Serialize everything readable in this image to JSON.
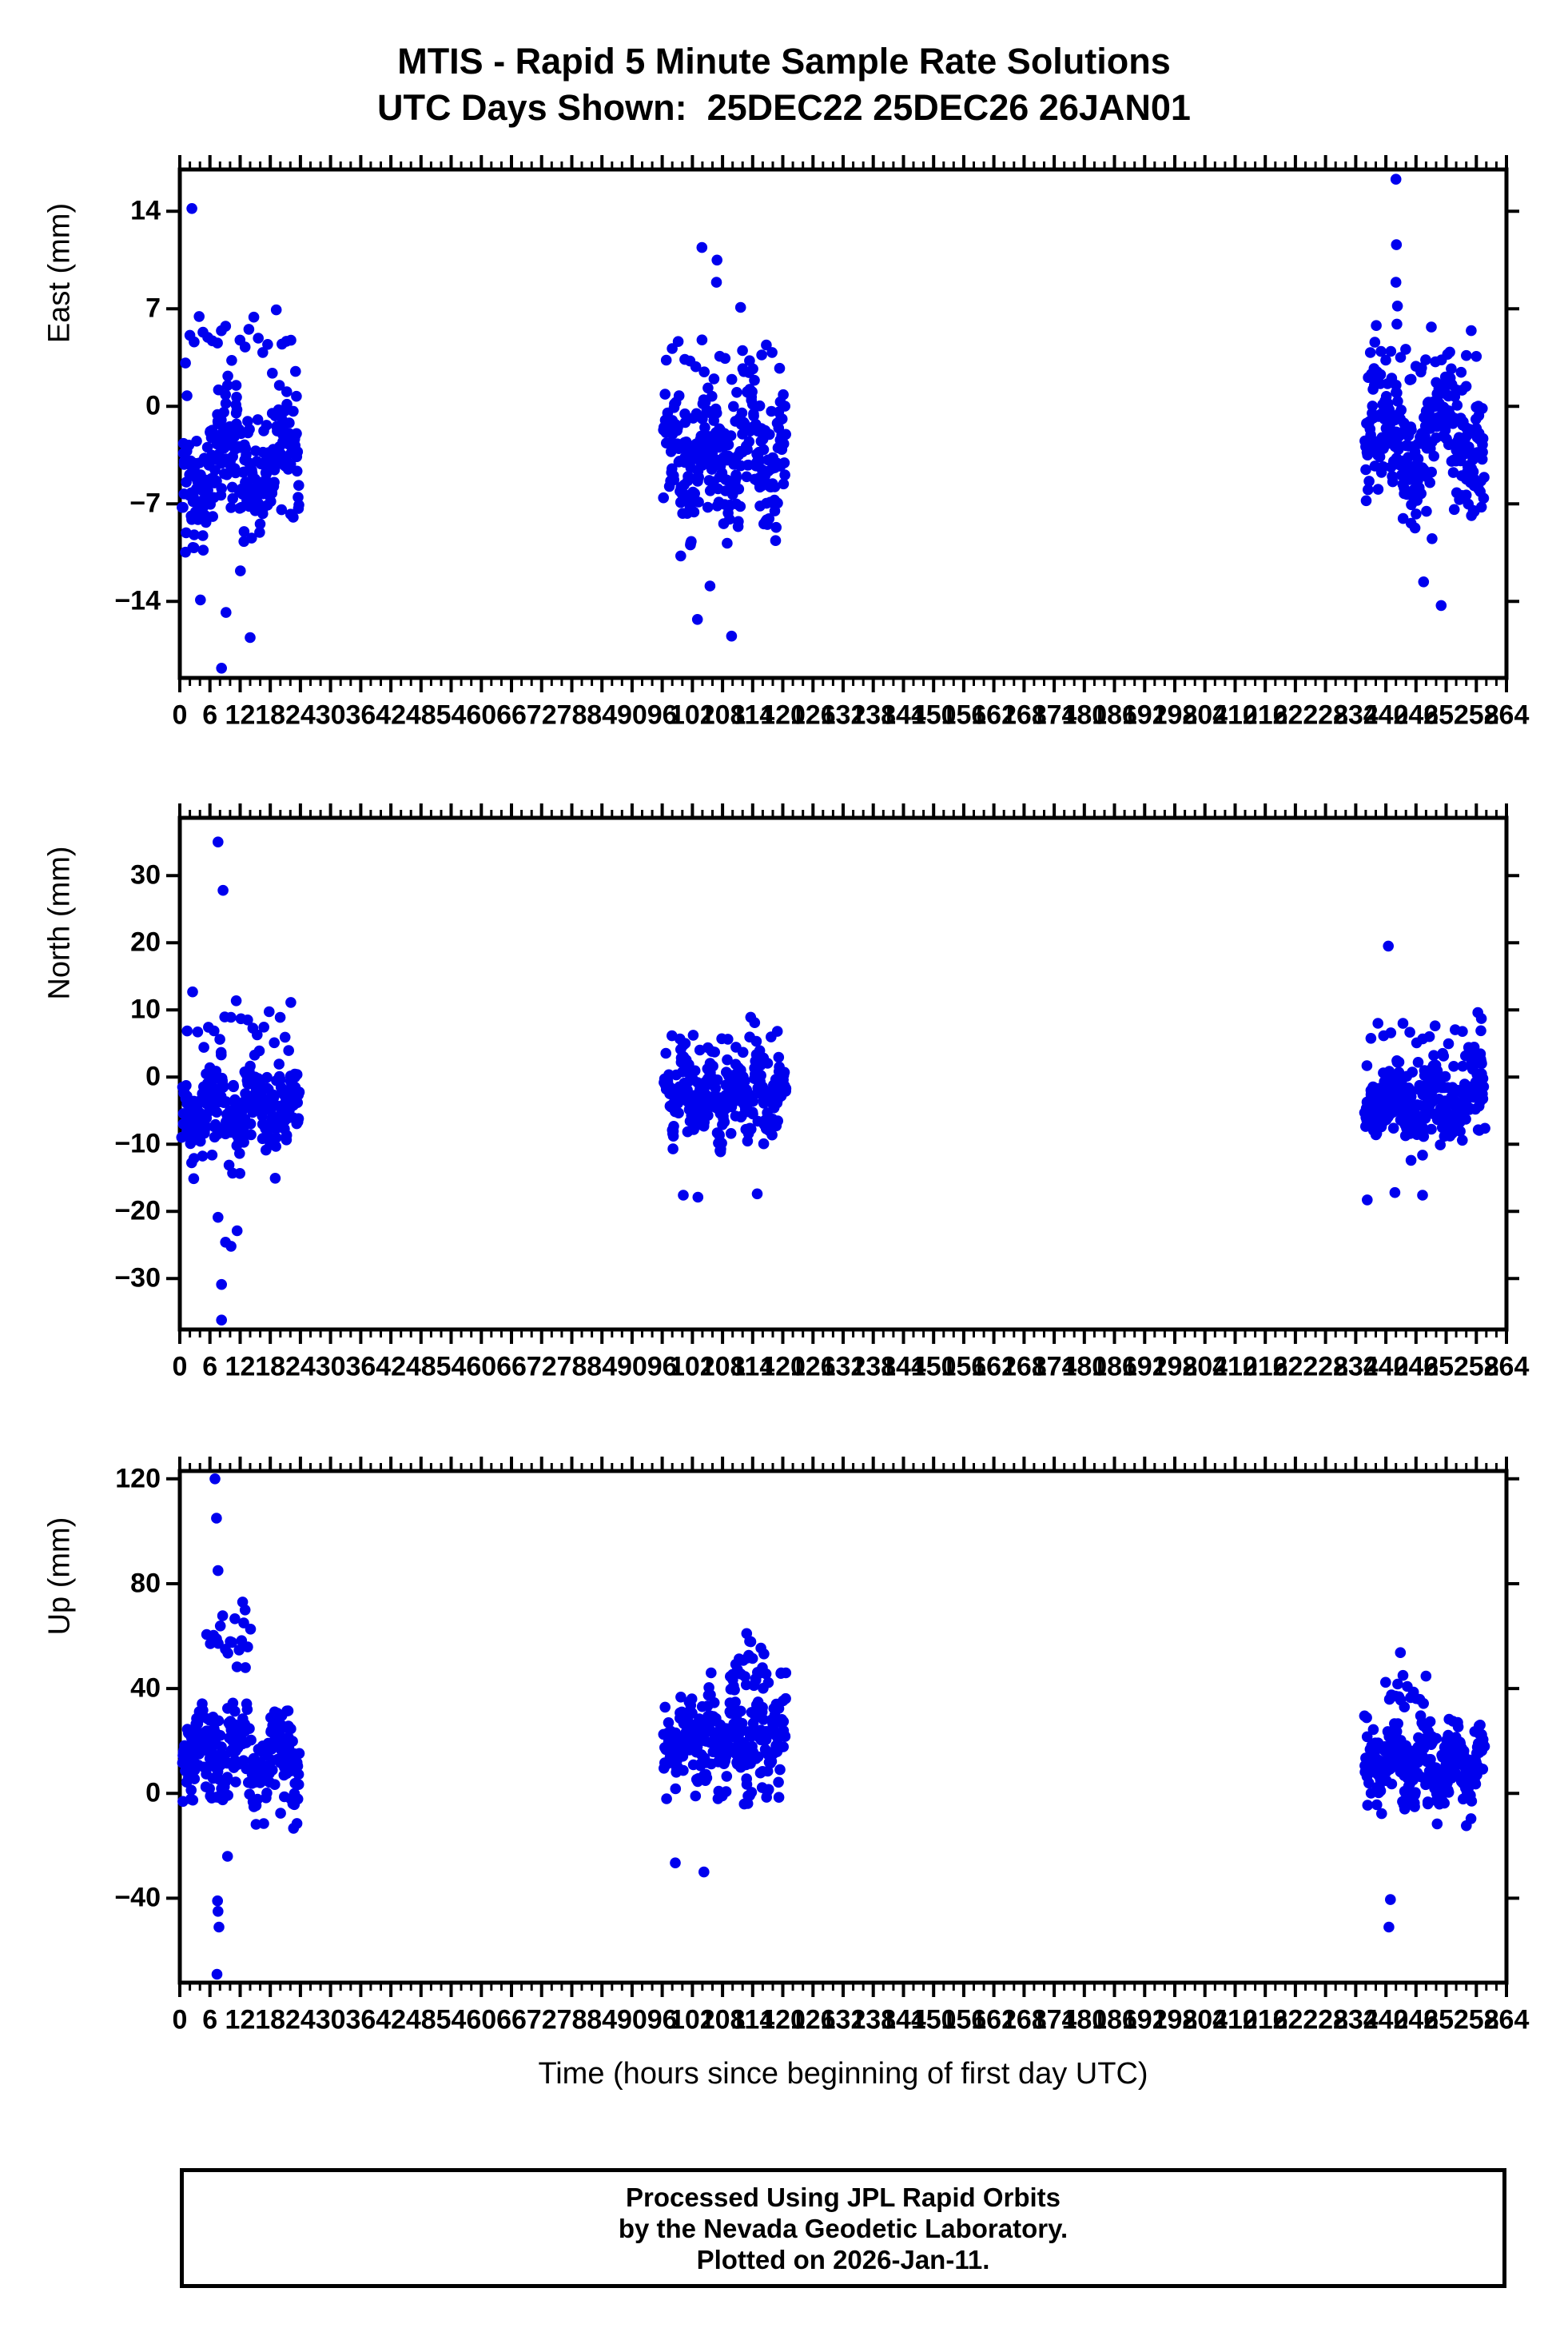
{
  "title": {
    "line1": "MTIS - Rapid 5 Minute Sample Rate Solutions",
    "line2": "UTC Days Shown:  25DEC22 25DEC26 26JAN01"
  },
  "xaxis": {
    "label": "Time (hours since beginning of first day UTC)",
    "min": 0,
    "max": 264,
    "major_step": 6,
    "minor_step": 2
  },
  "footer": {
    "line1": "Processed Using JPL Rapid Orbits",
    "line2": "by the Nevada Geodetic Laboratory.",
    "line3": "Plotted on 2026-Jan-11."
  },
  "style": {
    "point_color": "#0000ee",
    "axis_color": "#000000",
    "point_radius": 6.8
  },
  "chart_data": [
    {
      "type": "scatter",
      "ylabel": "East (mm)",
      "ylim": [
        -19.5,
        17.0
      ],
      "yticks": [
        14,
        7,
        0,
        -7,
        -14
      ],
      "grid": false,
      "clusters": [
        {
          "x0": 0.5,
          "x1": 23.8,
          "n": 272,
          "mean": -4.2,
          "std": 3.6,
          "lo": -12.5,
          "hi": 5.0,
          "seed": 101
        },
        {
          "x0": 1.0,
          "x1": 23.0,
          "n": 25,
          "mean": 4.5,
          "std": 1.8,
          "lo": 1.5,
          "hi": 7.4,
          "seed": 102
        },
        {
          "x0": 96.3,
          "x1": 120.6,
          "n": 281,
          "mean": -3.6,
          "std": 3.4,
          "lo": -11.0,
          "hi": 4.0,
          "seed": 103
        },
        {
          "x0": 98.0,
          "x1": 118.0,
          "n": 18,
          "mean": 3.0,
          "std": 1.5,
          "lo": 1.0,
          "hi": 5.2,
          "seed": 104
        },
        {
          "x0": 235.8,
          "x1": 259.6,
          "n": 289,
          "mean": -2.4,
          "std": 3.6,
          "lo": -9.5,
          "hi": 4.6,
          "seed": 105
        },
        {
          "x0": 237.0,
          "x1": 258.0,
          "n": 22,
          "mean": 3.5,
          "std": 1.6,
          "lo": 1.0,
          "hi": 5.8,
          "seed": 106
        }
      ],
      "outliers": [
        [
          2.4,
          14.2
        ],
        [
          8.3,
          -18.8
        ],
        [
          14.0,
          -16.6
        ],
        [
          9.2,
          -14.8
        ],
        [
          4.1,
          -13.9
        ],
        [
          103.9,
          11.4
        ],
        [
          106.9,
          10.5
        ],
        [
          106.8,
          8.9
        ],
        [
          111.6,
          7.1
        ],
        [
          103.0,
          -15.3
        ],
        [
          109.8,
          -16.5
        ],
        [
          105.5,
          -12.9
        ],
        [
          242.0,
          16.3
        ],
        [
          242.1,
          11.6
        ],
        [
          242.0,
          8.9
        ],
        [
          242.3,
          7.2
        ],
        [
          242.2,
          5.9
        ],
        [
          251.0,
          -14.3
        ],
        [
          247.5,
          -12.6
        ]
      ]
    },
    {
      "type": "scatter",
      "ylabel": "North (mm)",
      "ylim": [
        -37.6,
        38.6
      ],
      "yticks": [
        30,
        20,
        10,
        0,
        -10,
        -20,
        -30
      ],
      "grid": false,
      "clusters": [
        {
          "x0": 0.5,
          "x1": 23.8,
          "n": 268,
          "mean": -4.5,
          "std": 4.6,
          "lo": -17.5,
          "hi": 6.0,
          "seed": 201
        },
        {
          "x0": 1.5,
          "x1": 22.0,
          "n": 20,
          "mean": 8.0,
          "std": 3.0,
          "lo": 4.0,
          "hi": 13.8,
          "seed": 202
        },
        {
          "x0": 96.3,
          "x1": 120.6,
          "n": 277,
          "mean": -3.2,
          "std": 4.2,
          "lo": -14.0,
          "hi": 5.0,
          "seed": 203
        },
        {
          "x0": 98.0,
          "x1": 119.0,
          "n": 16,
          "mean": 5.0,
          "std": 2.0,
          "lo": 2.0,
          "hi": 6.8,
          "seed": 204
        },
        {
          "x0": 235.8,
          "x1": 259.6,
          "n": 286,
          "mean": -3.8,
          "std": 4.2,
          "lo": -13.5,
          "hi": 5.2,
          "seed": 205
        },
        {
          "x0": 237.0,
          "x1": 259.0,
          "n": 18,
          "mean": 6.0,
          "std": 2.2,
          "lo": 2.0,
          "hi": 8.0,
          "seed": 206
        }
      ],
      "outliers": [
        [
          7.6,
          35.0
        ],
        [
          8.6,
          27.8
        ],
        [
          8.3,
          -36.2
        ],
        [
          8.3,
          -30.9
        ],
        [
          9.1,
          -24.6
        ],
        [
          7.6,
          -20.9
        ],
        [
          11.4,
          -22.9
        ],
        [
          10.2,
          -25.2
        ],
        [
          100.2,
          -17.6
        ],
        [
          103.1,
          -17.9
        ],
        [
          114.9,
          -17.4
        ],
        [
          113.6,
          8.9
        ],
        [
          114.4,
          8.1
        ],
        [
          240.5,
          19.5
        ],
        [
          258.3,
          9.6
        ],
        [
          259.0,
          8.7
        ],
        [
          236.3,
          -18.3
        ],
        [
          241.8,
          -17.2
        ],
        [
          247.3,
          -17.6
        ]
      ]
    },
    {
      "type": "scatter",
      "ylabel": "Up (mm)",
      "ylim": [
        -72.2,
        123.0
      ],
      "yticks": [
        120,
        80,
        40,
        0,
        -40
      ],
      "grid": false,
      "clusters": [
        {
          "x0": 0.5,
          "x1": 23.8,
          "n": 266,
          "mean": 14.0,
          "std": 13.0,
          "lo": -23.0,
          "hi": 48.0,
          "seed": 301
        },
        {
          "x0": 5.5,
          "x1": 14.0,
          "n": 20,
          "mean": 58.0,
          "std": 8.0,
          "lo": 45.0,
          "hi": 73.0,
          "seed": 302
        },
        {
          "x0": 96.3,
          "x1": 120.6,
          "n": 276,
          "mean": 20.0,
          "std": 13.0,
          "lo": -27.0,
          "hi": 46.0,
          "seed": 303
        },
        {
          "x0": 110.0,
          "x1": 117.0,
          "n": 22,
          "mean": 50.0,
          "std": 7.0,
          "lo": 38.0,
          "hi": 61.0,
          "seed": 304
        },
        {
          "x0": 235.8,
          "x1": 259.6,
          "n": 284,
          "mean": 11.0,
          "std": 11.0,
          "lo": -21.0,
          "hi": 40.0,
          "seed": 305
        },
        {
          "x0": 240.0,
          "x1": 248.0,
          "n": 14,
          "mean": 38.0,
          "std": 5.0,
          "lo": 30.0,
          "hi": 48.0,
          "seed": 306
        }
      ],
      "outliers": [
        [
          7.0,
          120.0
        ],
        [
          7.3,
          105.0
        ],
        [
          7.6,
          85.0
        ],
        [
          12.5,
          73.0
        ],
        [
          13.0,
          70.0
        ],
        [
          7.5,
          -41.0
        ],
        [
          7.6,
          -45.0
        ],
        [
          7.8,
          -51.0
        ],
        [
          7.4,
          -69.0
        ],
        [
          9.5,
          -24.0
        ],
        [
          104.3,
          -30.0
        ],
        [
          98.6,
          -26.5
        ],
        [
          112.8,
          61.0
        ],
        [
          113.4,
          58.0
        ],
        [
          240.9,
          -40.5
        ],
        [
          240.6,
          -51.0
        ],
        [
          242.9,
          53.7
        ],
        [
          243.4,
          45.0
        ]
      ]
    }
  ]
}
